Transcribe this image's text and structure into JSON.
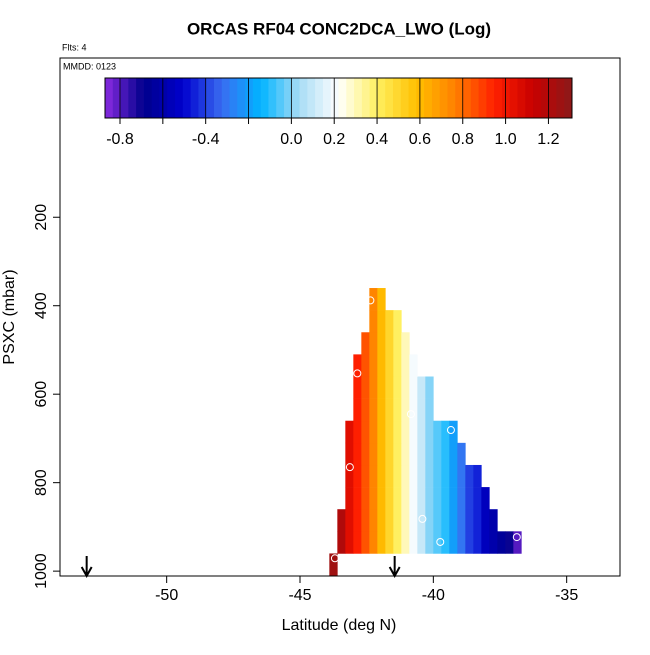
{
  "chart_data": {
    "type": "heatmap",
    "title": "ORCAS RF04 CONC2DCA_LWO (Log)",
    "subtitle": "Flts: 4",
    "annotation": "MMDD: 0123",
    "x_label": "Latitude (deg N)",
    "y_label": "PSXC (mbar)",
    "xlim": [
      -54.0,
      -33.0
    ],
    "xticks": [
      -50,
      -45,
      -40,
      -35
    ],
    "ylim": [
      1011,
      -160
    ],
    "yticks": [
      200,
      400,
      600,
      800,
      1000
    ],
    "x": [
      -43.75,
      -43.45,
      -43.15,
      -42.85,
      -42.55,
      -42.25,
      -41.95,
      -41.65,
      -41.35,
      -41.05,
      -40.75,
      -40.45,
      -40.15,
      -39.85,
      -39.55,
      -39.25,
      -38.95,
      -38.65,
      -38.35,
      -38.05,
      -37.75,
      -37.45,
      -37.15,
      -36.85
    ],
    "y": [
      985,
      935,
      885,
      835,
      785,
      735,
      685,
      635,
      585,
      535,
      485,
      435,
      385
    ],
    "z": [
      [
        1.25,
        null,
        null,
        null,
        null,
        null,
        null,
        null,
        null,
        null,
        null,
        null,
        null,
        null,
        null,
        null,
        null,
        null,
        null,
        null,
        null,
        null,
        null,
        null
      ],
      [
        null,
        1.2,
        1.05,
        0.95,
        0.85,
        0.75,
        0.6,
        0.5,
        0.4,
        0.3,
        0.2,
        0.1,
        0,
        -0.05,
        -0.1,
        -0.2,
        -0.3,
        -0.4,
        -0.45,
        -0.55,
        -0.6,
        -0.65,
        -0.7,
        -0.8
      ],
      [
        null,
        1.2,
        1.05,
        0.95,
        0.85,
        0.75,
        0.6,
        0.5,
        0.4,
        0.3,
        0.2,
        0.1,
        0,
        -0.05,
        -0.1,
        -0.2,
        -0.3,
        -0.4,
        -0.45,
        -0.55,
        -0.6,
        null,
        null,
        null
      ],
      [
        null,
        null,
        1.05,
        0.95,
        0.85,
        0.75,
        0.6,
        0.5,
        0.4,
        0.3,
        0.2,
        0.1,
        0,
        -0.05,
        -0.1,
        -0.2,
        -0.3,
        -0.4,
        -0.45,
        -0.55,
        null,
        null,
        null,
        null
      ],
      [
        null,
        null,
        1.05,
        0.95,
        0.85,
        0.75,
        0.6,
        0.5,
        0.4,
        0.3,
        0.2,
        0.1,
        0,
        -0.05,
        -0.1,
        -0.2,
        -0.3,
        -0.4,
        -0.45,
        null,
        null,
        null,
        null,
        null
      ],
      [
        null,
        null,
        1.05,
        0.95,
        0.85,
        0.75,
        0.6,
        0.5,
        0.4,
        0.3,
        0.2,
        0.1,
        0,
        -0.05,
        -0.1,
        -0.2,
        -0.3,
        null,
        null,
        null,
        null,
        null,
        null,
        null
      ],
      [
        null,
        null,
        1.05,
        0.95,
        0.85,
        0.75,
        0.6,
        0.5,
        0.4,
        0.3,
        0.2,
        0.1,
        0,
        -0.05,
        -0.1,
        -0.2,
        null,
        null,
        null,
        null,
        null,
        null,
        null,
        null
      ],
      [
        null,
        null,
        null,
        0.95,
        0.85,
        0.75,
        0.6,
        0.5,
        0.4,
        0.3,
        0.2,
        0.1,
        0,
        null,
        null,
        null,
        null,
        null,
        null,
        null,
        null,
        null,
        null,
        null
      ],
      [
        null,
        null,
        null,
        0.95,
        0.85,
        0.75,
        0.6,
        0.5,
        0.4,
        0.3,
        0.2,
        0.1,
        0,
        null,
        null,
        null,
        null,
        null,
        null,
        null,
        null,
        null,
        null,
        null
      ],
      [
        null,
        null,
        null,
        0.95,
        0.85,
        0.75,
        0.6,
        0.5,
        0.4,
        0.3,
        0.2,
        null,
        null,
        null,
        null,
        null,
        null,
        null,
        null,
        null,
        null,
        null,
        null,
        null
      ],
      [
        null,
        null,
        null,
        null,
        0.85,
        0.75,
        0.6,
        0.5,
        0.4,
        0.3,
        null,
        null,
        null,
        null,
        null,
        null,
        null,
        null,
        null,
        null,
        null,
        null,
        null,
        null
      ],
      [
        null,
        null,
        null,
        null,
        null,
        0.75,
        0.6,
        0.5,
        0.4,
        null,
        null,
        null,
        null,
        null,
        null,
        null,
        null,
        null,
        null,
        null,
        null,
        null,
        null,
        null
      ],
      [
        null,
        null,
        null,
        null,
        null,
        0.75,
        0.6,
        null,
        null,
        null,
        null,
        null,
        null,
        null,
        null,
        null,
        null,
        null,
        null,
        null,
        null,
        null,
        null,
        null
      ]
    ],
    "zlim": [
      -0.87,
      1.31
    ],
    "colorscale": [
      "#8a2be2",
      "#00008b",
      "#0000cd",
      "#3a6cf0",
      "#00b4ff",
      "#a8dcf5",
      "#ffffff",
      "#fff060",
      "#ffc000",
      "#ff8000",
      "#ff2000",
      "#c80000",
      "#8b1a1a"
    ],
    "colorbar_ticks": [
      -0.8,
      -0.4,
      {
        "value": 0,
        "label": "0.0"
      },
      0.2,
      0.4,
      0.6,
      0.8,
      {
        "value": 1,
        "label": "1.0"
      },
      1.2
    ],
    "colorbar_minor_ticks": [
      -0.6,
      -0.2
    ],
    "markers": {
      "x": [
        -43.69,
        -42.36,
        -42.85,
        -40.84,
        -39.34,
        -43.13,
        -40.41,
        -39.74,
        -36.87
      ],
      "y": [
        971,
        388,
        553,
        645,
        681,
        765,
        882,
        934,
        923
      ]
    },
    "arrows_x": [
      -53,
      -41.45
    ]
  }
}
